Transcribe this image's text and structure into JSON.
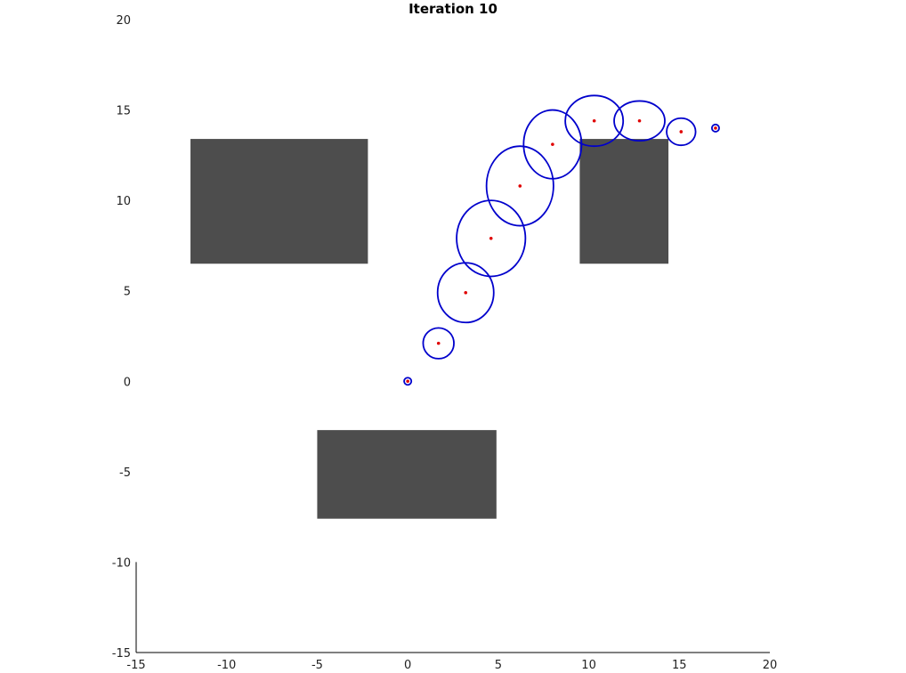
{
  "chart_data": {
    "type": "scatter",
    "title": "Iteration 10",
    "xlabel": "",
    "ylabel": "",
    "xlim": [
      -15,
      20
    ],
    "ylim": [
      -15,
      20
    ],
    "xticks": [
      -15,
      -10,
      -5,
      0,
      5,
      10,
      15,
      20
    ],
    "yticks": [
      -15,
      -10,
      -5,
      0,
      5,
      10,
      15,
      20
    ],
    "grid": false,
    "obstacles": [
      {
        "x": [
          -12,
          -2.2
        ],
        "y": [
          6.5,
          13.4
        ]
      },
      {
        "x": [
          9.5,
          14.4
        ],
        "y": [
          6.5,
          13.4
        ]
      },
      {
        "x": [
          -5,
          4.9
        ],
        "y": [
          -7.6,
          -2.7
        ]
      }
    ],
    "points": [
      {
        "x": 0,
        "y": 0
      },
      {
        "x": 1.7,
        "y": 2.1
      },
      {
        "x": 3.2,
        "y": 4.9
      },
      {
        "x": 4.6,
        "y": 7.9
      },
      {
        "x": 6.2,
        "y": 10.8
      },
      {
        "x": 8.0,
        "y": 13.1
      },
      {
        "x": 10.3,
        "y": 14.4
      },
      {
        "x": 12.8,
        "y": 14.4
      },
      {
        "x": 15.1,
        "y": 13.8
      },
      {
        "x": 17.0,
        "y": 14.0
      }
    ],
    "ellipses": [
      {
        "cx": 0,
        "cy": 0,
        "rx": 0.2,
        "ry": 0.2
      },
      {
        "cx": 1.7,
        "cy": 2.1,
        "rx": 0.85,
        "ry": 0.85
      },
      {
        "cx": 3.2,
        "cy": 4.9,
        "rx": 1.55,
        "ry": 1.65
      },
      {
        "cx": 4.6,
        "cy": 7.9,
        "rx": 1.9,
        "ry": 2.1
      },
      {
        "cx": 6.2,
        "cy": 10.8,
        "rx": 1.85,
        "ry": 2.2
      },
      {
        "cx": 8.0,
        "cy": 13.1,
        "rx": 1.6,
        "ry": 1.9
      },
      {
        "cx": 10.3,
        "cy": 14.4,
        "rx": 1.6,
        "ry": 1.4
      },
      {
        "cx": 12.8,
        "cy": 14.4,
        "rx": 1.4,
        "ry": 1.1
      },
      {
        "cx": 15.1,
        "cy": 13.8,
        "rx": 0.8,
        "ry": 0.75
      },
      {
        "cx": 17.0,
        "cy": 14.0,
        "rx": 0.2,
        "ry": 0.2
      }
    ],
    "colors": {
      "obstacle": "#4d4d4d",
      "point": "#e00000",
      "ellipse": "#0000cc",
      "axis": "#000000"
    }
  }
}
